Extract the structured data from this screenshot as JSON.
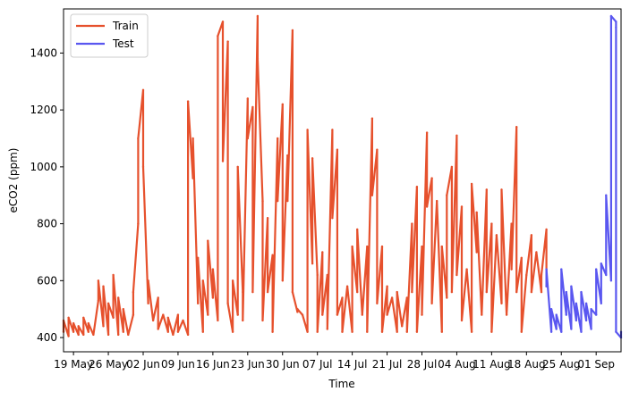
{
  "chart_data": {
    "type": "line",
    "title": "",
    "xlabel": "Time",
    "ylabel": "eCO2 (ppm)",
    "xlim": [
      "2021-05-17",
      "2021-09-06"
    ],
    "ylim": [
      350,
      1555
    ],
    "x_ticks": [
      "19 May",
      "26 May",
      "02 Jun",
      "09 Jun",
      "16 Jun",
      "23 Jun",
      "30 Jun",
      "07 Jul",
      "14 Jul",
      "21 Jul",
      "28 Jul",
      "04 Aug",
      "11 Aug",
      "18 Aug",
      "25 Aug",
      "01 Sep"
    ],
    "y_ticks": [
      400,
      600,
      800,
      1000,
      1200,
      1400
    ],
    "legend_position": "top-left",
    "grid": false,
    "series": [
      {
        "name": "Train",
        "color": "#e6512d",
        "points": [
          [
            "2021-05-17",
            420
          ],
          [
            "2021-05-17",
            460
          ],
          [
            "2021-05-18",
            405
          ],
          [
            "2021-05-18",
            470
          ],
          [
            "2021-05-19",
            420
          ],
          [
            "2021-05-19",
            450
          ],
          [
            "2021-05-20",
            410
          ],
          [
            "2021-05-20",
            440
          ],
          [
            "2021-05-21",
            410
          ],
          [
            "2021-05-21",
            470
          ],
          [
            "2021-05-22",
            420
          ],
          [
            "2021-05-22",
            450
          ],
          [
            "2021-05-23",
            410
          ],
          [
            "2021-05-24",
            530
          ],
          [
            "2021-05-24",
            600
          ],
          [
            "2021-05-25",
            440
          ],
          [
            "2021-05-25",
            580
          ],
          [
            "2021-05-26",
            410
          ],
          [
            "2021-05-26",
            520
          ],
          [
            "2021-05-27",
            470
          ],
          [
            "2021-05-27",
            620
          ],
          [
            "2021-05-28",
            410
          ],
          [
            "2021-05-28",
            540
          ],
          [
            "2021-05-29",
            420
          ],
          [
            "2021-05-29",
            500
          ],
          [
            "2021-05-30",
            410
          ],
          [
            "2021-05-31",
            480
          ],
          [
            "2021-05-31",
            560
          ],
          [
            "2021-06-01",
            800
          ],
          [
            "2021-06-01",
            1100
          ],
          [
            "2021-06-02",
            1270
          ],
          [
            "2021-06-02",
            1000
          ],
          [
            "2021-06-03",
            520
          ],
          [
            "2021-06-03",
            600
          ],
          [
            "2021-06-04",
            460
          ],
          [
            "2021-06-05",
            540
          ],
          [
            "2021-06-05",
            430
          ],
          [
            "2021-06-06",
            480
          ],
          [
            "2021-06-07",
            420
          ],
          [
            "2021-06-07",
            470
          ],
          [
            "2021-06-08",
            410
          ],
          [
            "2021-06-09",
            480
          ],
          [
            "2021-06-09",
            420
          ],
          [
            "2021-06-10",
            460
          ],
          [
            "2021-06-11",
            410
          ],
          [
            "2021-06-11",
            1230
          ],
          [
            "2021-06-12",
            960
          ],
          [
            "2021-06-12",
            1100
          ],
          [
            "2021-06-13",
            520
          ],
          [
            "2021-06-13",
            680
          ],
          [
            "2021-06-14",
            420
          ],
          [
            "2021-06-14",
            600
          ],
          [
            "2021-06-15",
            480
          ],
          [
            "2021-06-15",
            740
          ],
          [
            "2021-06-16",
            540
          ],
          [
            "2021-06-16",
            640
          ],
          [
            "2021-06-17",
            460
          ],
          [
            "2021-06-17",
            1460
          ],
          [
            "2021-06-18",
            1510
          ],
          [
            "2021-06-18",
            1020
          ],
          [
            "2021-06-19",
            1440
          ],
          [
            "2021-06-19",
            520
          ],
          [
            "2021-06-20",
            420
          ],
          [
            "2021-06-20",
            600
          ],
          [
            "2021-06-21",
            480
          ],
          [
            "2021-06-21",
            1000
          ],
          [
            "2021-06-22",
            560
          ],
          [
            "2021-06-22",
            460
          ],
          [
            "2021-06-23",
            1240
          ],
          [
            "2021-06-23",
            1100
          ],
          [
            "2021-06-24",
            1210
          ],
          [
            "2021-06-24",
            560
          ],
          [
            "2021-06-25",
            1530
          ],
          [
            "2021-06-25",
            1380
          ],
          [
            "2021-06-26",
            880
          ],
          [
            "2021-06-26",
            460
          ],
          [
            "2021-06-27",
            820
          ],
          [
            "2021-06-27",
            560
          ],
          [
            "2021-06-28",
            690
          ],
          [
            "2021-06-28",
            420
          ],
          [
            "2021-06-29",
            1100
          ],
          [
            "2021-06-29",
            880
          ],
          [
            "2021-06-30",
            1220
          ],
          [
            "2021-06-30",
            600
          ],
          [
            "2021-07-01",
            1040
          ],
          [
            "2021-07-01",
            880
          ],
          [
            "2021-07-02",
            1480
          ],
          [
            "2021-07-02",
            560
          ],
          [
            "2021-07-03",
            490
          ],
          [
            "2021-07-03",
            500
          ],
          [
            "2021-07-04",
            480
          ],
          [
            "2021-07-05",
            420
          ],
          [
            "2021-07-05",
            1130
          ],
          [
            "2021-07-06",
            660
          ],
          [
            "2021-07-06",
            1030
          ],
          [
            "2021-07-07",
            620
          ],
          [
            "2021-07-07",
            420
          ],
          [
            "2021-07-08",
            700
          ],
          [
            "2021-07-08",
            480
          ],
          [
            "2021-07-09",
            620
          ],
          [
            "2021-07-09",
            430
          ],
          [
            "2021-07-10",
            1130
          ],
          [
            "2021-07-10",
            820
          ],
          [
            "2021-07-11",
            1060
          ],
          [
            "2021-07-11",
            480
          ],
          [
            "2021-07-12",
            540
          ],
          [
            "2021-07-12",
            420
          ],
          [
            "2021-07-13",
            580
          ],
          [
            "2021-07-14",
            420
          ],
          [
            "2021-07-14",
            720
          ],
          [
            "2021-07-15",
            560
          ],
          [
            "2021-07-15",
            780
          ],
          [
            "2021-07-16",
            480
          ],
          [
            "2021-07-17",
            720
          ],
          [
            "2021-07-17",
            420
          ],
          [
            "2021-07-18",
            1170
          ],
          [
            "2021-07-18",
            900
          ],
          [
            "2021-07-19",
            1060
          ],
          [
            "2021-07-19",
            520
          ],
          [
            "2021-07-20",
            720
          ],
          [
            "2021-07-20",
            420
          ],
          [
            "2021-07-21",
            580
          ],
          [
            "2021-07-21",
            480
          ],
          [
            "2021-07-22",
            540
          ],
          [
            "2021-07-23",
            420
          ],
          [
            "2021-07-23",
            560
          ],
          [
            "2021-07-24",
            440
          ],
          [
            "2021-07-25",
            540
          ],
          [
            "2021-07-25",
            420
          ],
          [
            "2021-07-26",
            800
          ],
          [
            "2021-07-26",
            560
          ],
          [
            "2021-07-27",
            930
          ],
          [
            "2021-07-27",
            420
          ],
          [
            "2021-07-28",
            720
          ],
          [
            "2021-07-28",
            480
          ],
          [
            "2021-07-29",
            1120
          ],
          [
            "2021-07-29",
            860
          ],
          [
            "2021-07-30",
            960
          ],
          [
            "2021-07-30",
            520
          ],
          [
            "2021-07-31",
            880
          ],
          [
            "2021-08-01",
            420
          ],
          [
            "2021-08-01",
            720
          ],
          [
            "2021-08-02",
            540
          ],
          [
            "2021-08-02",
            900
          ],
          [
            "2021-08-03",
            1000
          ],
          [
            "2021-08-03",
            560
          ],
          [
            "2021-08-04",
            1110
          ],
          [
            "2021-08-04",
            620
          ],
          [
            "2021-08-05",
            860
          ],
          [
            "2021-08-05",
            460
          ],
          [
            "2021-08-06",
            640
          ],
          [
            "2021-08-07",
            420
          ],
          [
            "2021-08-07",
            940
          ],
          [
            "2021-08-08",
            700
          ],
          [
            "2021-08-08",
            840
          ],
          [
            "2021-08-09",
            480
          ],
          [
            "2021-08-10",
            920
          ],
          [
            "2021-08-10",
            560
          ],
          [
            "2021-08-11",
            800
          ],
          [
            "2021-08-11",
            420
          ],
          [
            "2021-08-12",
            760
          ],
          [
            "2021-08-13",
            520
          ],
          [
            "2021-08-13",
            920
          ],
          [
            "2021-08-14",
            480
          ],
          [
            "2021-08-15",
            800
          ],
          [
            "2021-08-15",
            640
          ],
          [
            "2021-08-16",
            1140
          ],
          [
            "2021-08-16",
            560
          ],
          [
            "2021-08-17",
            680
          ],
          [
            "2021-08-17",
            420
          ],
          [
            "2021-08-18",
            620
          ],
          [
            "2021-08-19",
            760
          ],
          [
            "2021-08-19",
            560
          ],
          [
            "2021-08-20",
            700
          ],
          [
            "2021-08-21",
            560
          ],
          [
            "2021-08-21",
            620
          ],
          [
            "2021-08-22",
            780
          ],
          [
            "2021-08-22",
            580
          ]
        ]
      },
      {
        "name": "Test",
        "color": "#5a57f0",
        "points": [
          [
            "2021-08-22",
            580
          ],
          [
            "2021-08-22",
            640
          ],
          [
            "2021-08-23",
            420
          ],
          [
            "2021-08-23",
            500
          ],
          [
            "2021-08-24",
            430
          ],
          [
            "2021-08-24",
            480
          ],
          [
            "2021-08-25",
            420
          ],
          [
            "2021-08-25",
            640
          ],
          [
            "2021-08-26",
            480
          ],
          [
            "2021-08-26",
            560
          ],
          [
            "2021-08-27",
            430
          ],
          [
            "2021-08-27",
            580
          ],
          [
            "2021-08-28",
            460
          ],
          [
            "2021-08-28",
            520
          ],
          [
            "2021-08-29",
            420
          ],
          [
            "2021-08-29",
            560
          ],
          [
            "2021-08-30",
            460
          ],
          [
            "2021-08-30",
            520
          ],
          [
            "2021-08-31",
            430
          ],
          [
            "2021-08-31",
            500
          ],
          [
            "2021-09-01",
            480
          ],
          [
            "2021-09-01",
            640
          ],
          [
            "2021-09-02",
            520
          ],
          [
            "2021-09-02",
            660
          ],
          [
            "2021-09-03",
            620
          ],
          [
            "2021-09-03",
            900
          ],
          [
            "2021-09-04",
            600
          ],
          [
            "2021-09-04",
            1530
          ],
          [
            "2021-09-05",
            1510
          ],
          [
            "2021-09-05",
            1490
          ],
          [
            "2021-09-05",
            420
          ],
          [
            "2021-09-06",
            400
          ],
          [
            "2021-09-06",
            420
          ]
        ]
      }
    ]
  }
}
